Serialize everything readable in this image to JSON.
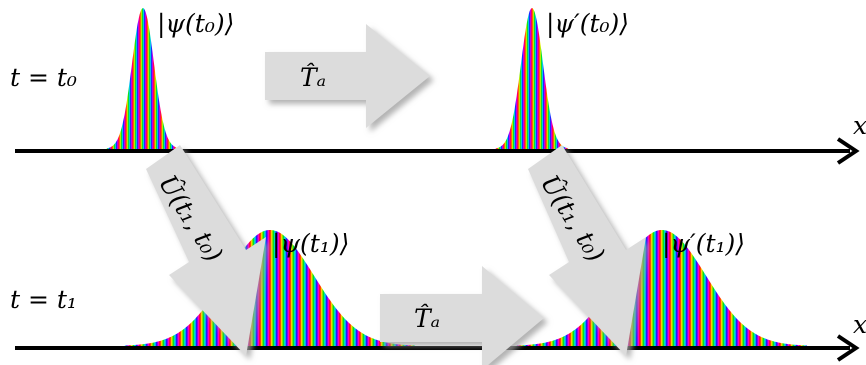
{
  "rows": [
    {
      "time_label": "t = t₀"
    },
    {
      "time_label": "t = t₁"
    }
  ],
  "axis": {
    "label": "x"
  },
  "states": [
    {
      "label": "|ψ(t₀)⟩"
    },
    {
      "label": "|ψ′(t₀)⟩"
    },
    {
      "label": "|ψ(t₁)⟩"
    },
    {
      "label": "|ψ′(t₁)⟩"
    }
  ],
  "operators": {
    "translation": "T̂ₐ",
    "evolution": "Û(t₁, t₀)"
  },
  "colors": {
    "arrow_fill": "#dcdcdc",
    "arrow_shadow": "#b5b5b5",
    "axis": "#000000"
  }
}
